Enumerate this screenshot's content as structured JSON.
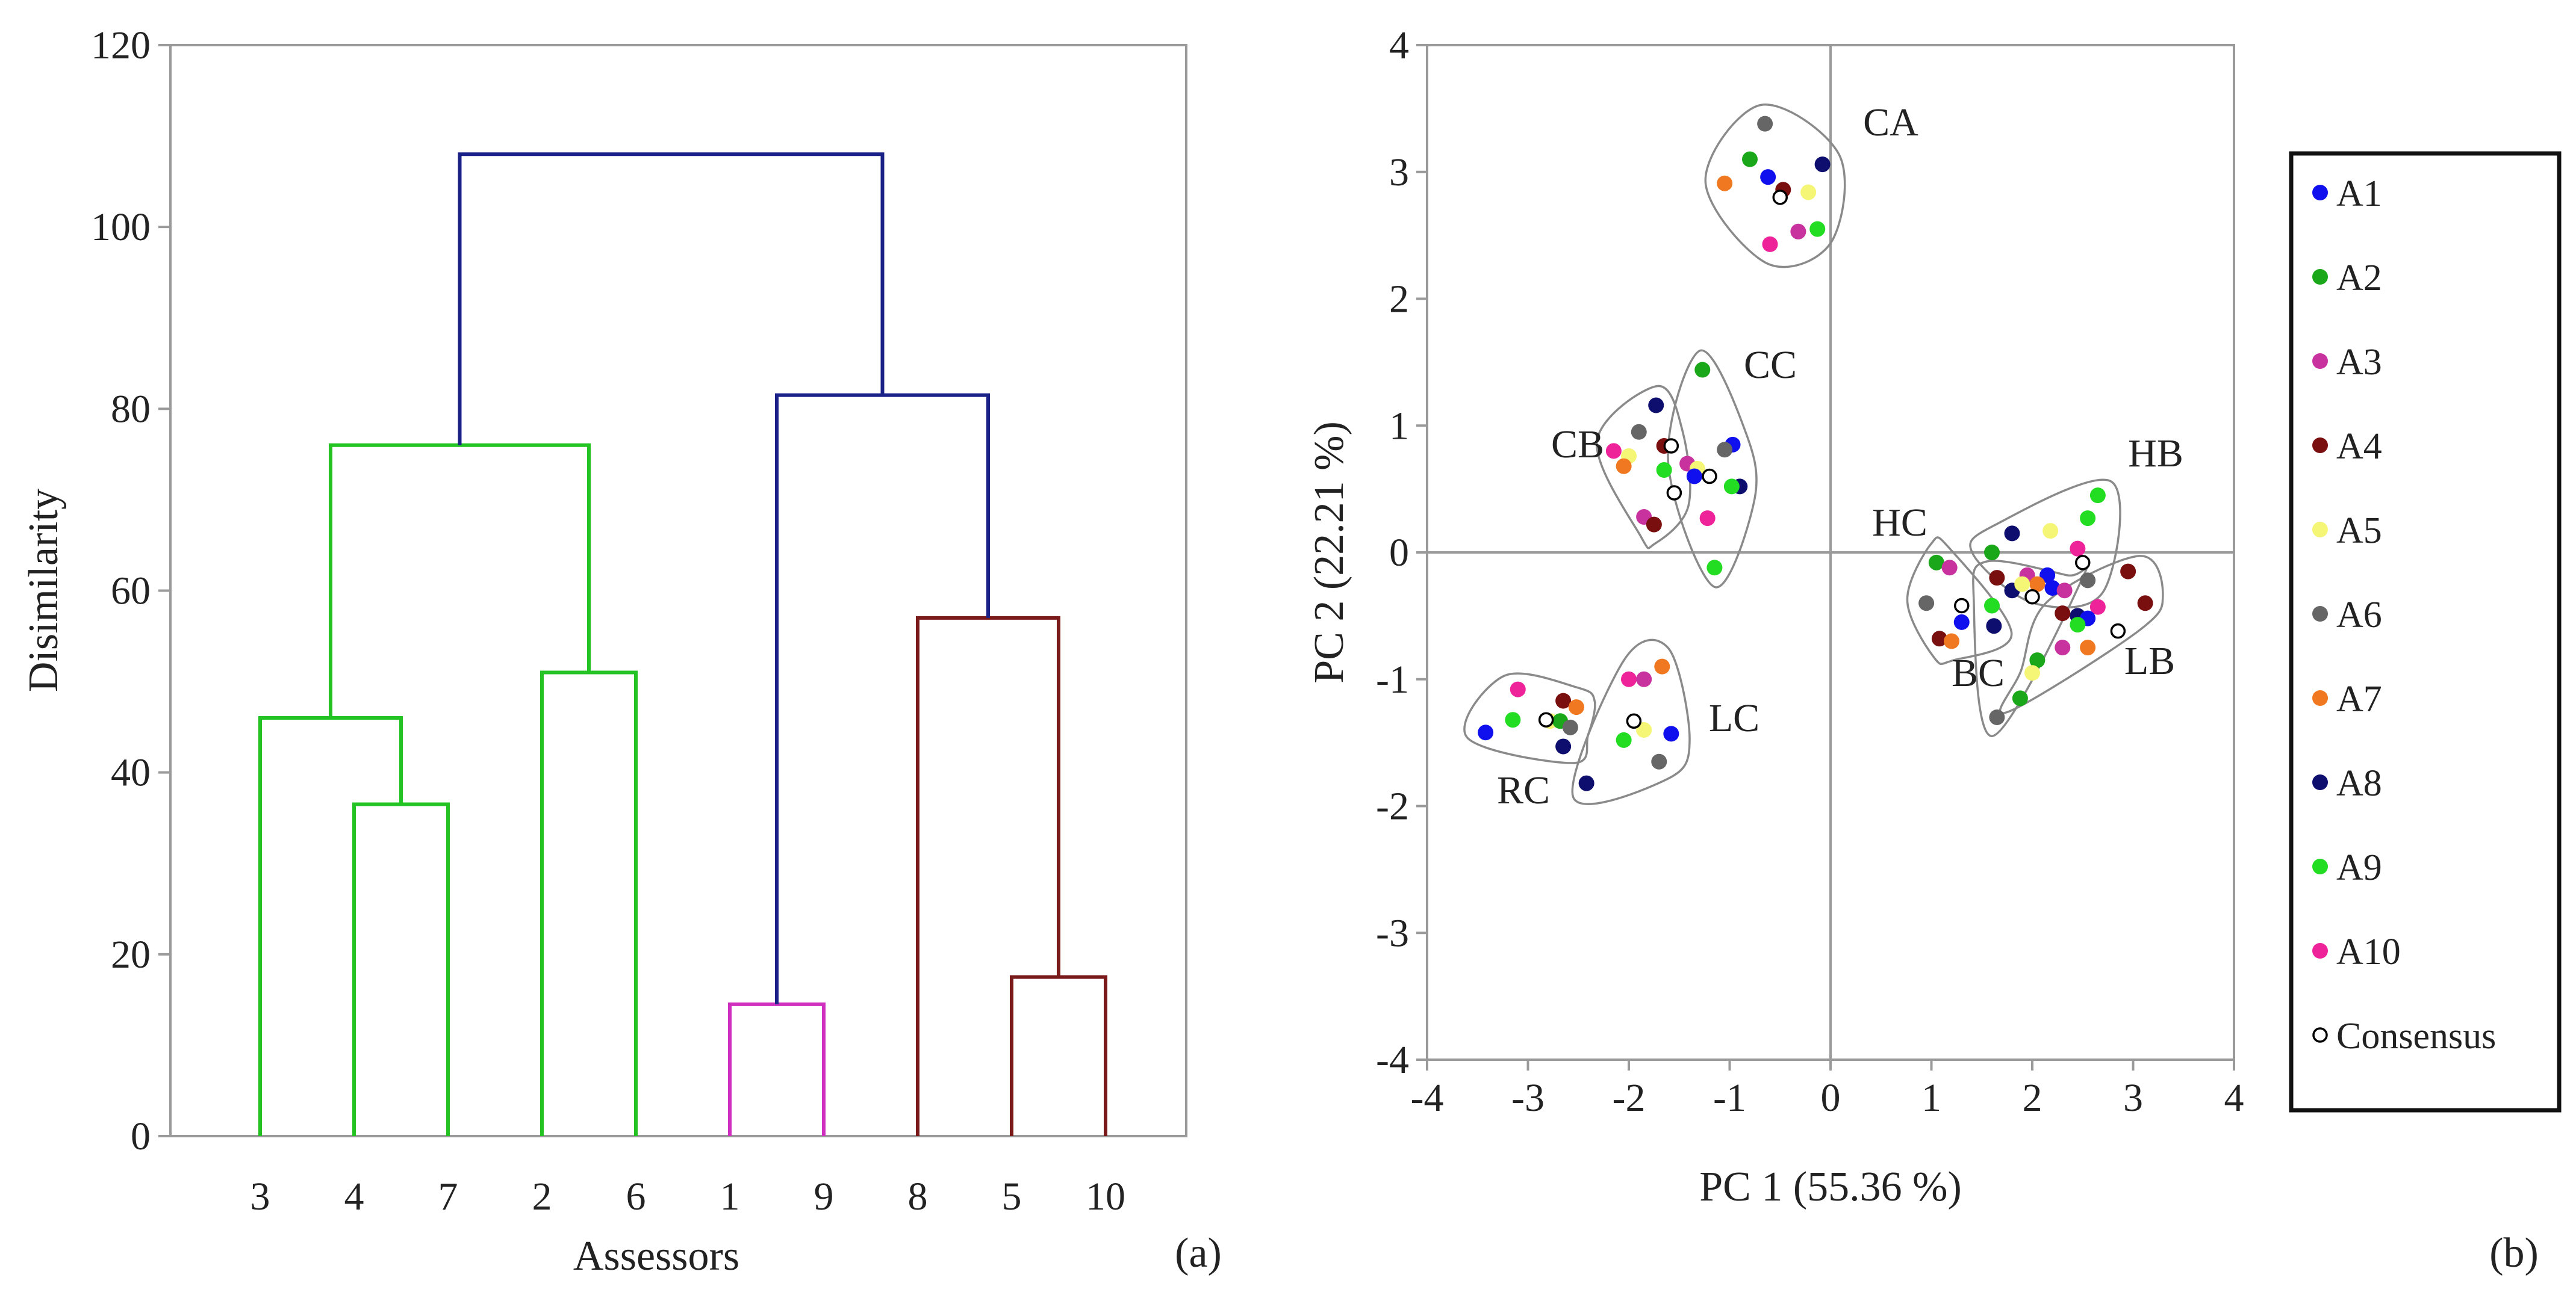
{
  "chart_data": [
    {
      "type": "dendrogram",
      "panel_label": "(a)",
      "title": "",
      "xlabel": "Assessors",
      "ylabel": "Disimilarity",
      "ylim": [
        0,
        120
      ],
      "yticks": [
        0,
        20,
        40,
        60,
        80,
        100,
        120
      ],
      "leaf_order": [
        "3",
        "4",
        "7",
        "2",
        "6",
        "1",
        "9",
        "8",
        "5",
        "10"
      ],
      "leaf_labels": [
        "3",
        "4",
        "7",
        "2",
        "6",
        "1",
        "9",
        "8",
        "5",
        "10"
      ],
      "colors": {
        "cluster_green": "#22c322",
        "cluster_magenta": "#d030c0",
        "cluster_darkred": "#7a1a1a",
        "root_blue": "#1a2288"
      },
      "merges": [
        {
          "id": "m47",
          "left": "4",
          "right": "7",
          "height": 36.5,
          "color": "cluster_green"
        },
        {
          "id": "m347",
          "left": "3",
          "right": "m47",
          "height": 46,
          "color": "cluster_green"
        },
        {
          "id": "m26",
          "left": "2",
          "right": "6",
          "height": 51,
          "color": "cluster_green"
        },
        {
          "id": "mG",
          "left": "m347",
          "right": "m26",
          "height": 76,
          "color": "cluster_green"
        },
        {
          "id": "m19",
          "left": "1",
          "right": "9",
          "height": 14.5,
          "color": "cluster_magenta"
        },
        {
          "id": "m510",
          "left": "5",
          "right": "10",
          "height": 17.5,
          "color": "cluster_darkred"
        },
        {
          "id": "m8510",
          "left": "8",
          "right": "m510",
          "height": 57,
          "color": "cluster_darkred"
        },
        {
          "id": "mB",
          "left": "m19",
          "right": "m8510",
          "height": 81.5,
          "color": "root_blue"
        },
        {
          "id": "root",
          "left": "mG",
          "right": "mB",
          "height": 108,
          "color": "root_blue"
        }
      ]
    },
    {
      "type": "scatter",
      "panel_label": "(b)",
      "title": "",
      "xlabel": "PC 1 (55.36 %)",
      "ylabel": "PC 2 (22.21 %)",
      "xlim": [
        -4,
        4
      ],
      "ylim": [
        -4,
        4
      ],
      "xticks": [
        -4,
        -3,
        -2,
        -1,
        0,
        1,
        2,
        3,
        4
      ],
      "yticks": [
        -4,
        -3,
        -2,
        -1,
        0,
        1,
        2,
        3,
        4
      ],
      "xtick_labels": [
        "-4",
        "-3",
        "-2",
        "-1",
        "0",
        "1",
        "2",
        "3",
        "4"
      ],
      "ytick_labels": [
        "-4",
        "-3",
        "-2",
        "-1",
        "0",
        "1",
        "2",
        "3",
        "4"
      ],
      "legend": {
        "position": "right",
        "entries": [
          {
            "label": "A1",
            "color": "#1010ee",
            "marker": "filled"
          },
          {
            "label": "A2",
            "color": "#1aa81a",
            "marker": "filled"
          },
          {
            "label": "A3",
            "color": "#c8329e",
            "marker": "filled"
          },
          {
            "label": "A4",
            "color": "#7a0f0f",
            "marker": "filled"
          },
          {
            "label": "A5",
            "color": "#f5f576",
            "marker": "filled"
          },
          {
            "label": "A6",
            "color": "#666666",
            "marker": "filled"
          },
          {
            "label": "A7",
            "color": "#f07820",
            "marker": "filled"
          },
          {
            "label": "A8",
            "color": "#0e0e6e",
            "marker": "filled"
          },
          {
            "label": "A9",
            "color": "#22dd22",
            "marker": "filled"
          },
          {
            "label": "A10",
            "color": "#ee2299",
            "marker": "filled"
          },
          {
            "label": "Consensus",
            "color": "#000000",
            "marker": "open"
          }
        ]
      },
      "groups": [
        {
          "label": "CA",
          "points": [
            {
              "s": "A6",
              "x": -0.65,
              "y": 3.38
            },
            {
              "s": "A2",
              "x": -0.8,
              "y": 3.1
            },
            {
              "s": "A8",
              "x": -0.08,
              "y": 3.06
            },
            {
              "s": "A1",
              "x": -0.62,
              "y": 2.96
            },
            {
              "s": "A7",
              "x": -1.05,
              "y": 2.91
            },
            {
              "s": "A4",
              "x": -0.47,
              "y": 2.86
            },
            {
              "s": "A5",
              "x": -0.22,
              "y": 2.84
            },
            {
              "s": "A3",
              "x": -0.32,
              "y": 2.53
            },
            {
              "s": "A9",
              "x": -0.13,
              "y": 2.55
            },
            {
              "s": "A10",
              "x": -0.6,
              "y": 2.43
            },
            {
              "s": "Consensus",
              "x": -0.5,
              "y": 2.8
            }
          ]
        },
        {
          "label": "CC",
          "points": [
            {
              "s": "A2",
              "x": -1.27,
              "y": 1.44
            },
            {
              "s": "A1",
              "x": -0.97,
              "y": 0.85
            },
            {
              "s": "A6",
              "x": -1.05,
              "y": 0.81
            },
            {
              "s": "A3",
              "x": -1.42,
              "y": 0.7
            },
            {
              "s": "A5",
              "x": -1.32,
              "y": 0.66
            },
            {
              "s": "A8",
              "x": -0.9,
              "y": 0.52
            },
            {
              "s": "A9",
              "x": -0.98,
              "y": 0.52
            },
            {
              "s": "A1",
              "x": -1.35,
              "y": 0.6
            },
            {
              "s": "A10",
              "x": -1.22,
              "y": 0.27
            },
            {
              "s": "A9",
              "x": -1.15,
              "y": -0.12
            },
            {
              "s": "Consensus",
              "x": -1.2,
              "y": 0.6
            }
          ]
        },
        {
          "label": "CB",
          "points": [
            {
              "s": "A8",
              "x": -1.73,
              "y": 1.16
            },
            {
              "s": "A6",
              "x": -1.9,
              "y": 0.95
            },
            {
              "s": "A4",
              "x": -1.65,
              "y": 0.84
            },
            {
              "s": "A10",
              "x": -2.15,
              "y": 0.8
            },
            {
              "s": "A5",
              "x": -2.0,
              "y": 0.76
            },
            {
              "s": "A7",
              "x": -2.05,
              "y": 0.68
            },
            {
              "s": "A9",
              "x": -1.65,
              "y": 0.65
            },
            {
              "s": "A3",
              "x": -1.85,
              "y": 0.28
            },
            {
              "s": "A4",
              "x": -1.75,
              "y": 0.22
            },
            {
              "s": "Consensus",
              "x": -1.58,
              "y": 0.84
            },
            {
              "s": "Consensus",
              "x": -1.55,
              "y": 0.47
            }
          ]
        },
        {
          "label": "RC",
          "points": [
            {
              "s": "A10",
              "x": -3.1,
              "y": -1.08
            },
            {
              "s": "A4",
              "x": -2.65,
              "y": -1.17
            },
            {
              "s": "A7",
              "x": -2.52,
              "y": -1.22
            },
            {
              "s": "A1",
              "x": -3.42,
              "y": -1.42
            },
            {
              "s": "A9",
              "x": -3.15,
              "y": -1.32
            },
            {
              "s": "A5",
              "x": -2.78,
              "y": -1.33
            },
            {
              "s": "A2",
              "x": -2.68,
              "y": -1.33
            },
            {
              "s": "A6",
              "x": -2.58,
              "y": -1.38
            },
            {
              "s": "A8",
              "x": -2.65,
              "y": -1.53
            },
            {
              "s": "Consensus",
              "x": -2.82,
              "y": -1.32
            }
          ]
        },
        {
          "label": "LC",
          "points": [
            {
              "s": "A7",
              "x": -1.67,
              "y": -0.9
            },
            {
              "s": "A10",
              "x": -2.0,
              "y": -1.0
            },
            {
              "s": "A3",
              "x": -1.85,
              "y": -1.0
            },
            {
              "s": "A5",
              "x": -1.85,
              "y": -1.4
            },
            {
              "s": "A1",
              "x": -1.58,
              "y": -1.43
            },
            {
              "s": "A9",
              "x": -2.05,
              "y": -1.48
            },
            {
              "s": "A6",
              "x": -1.7,
              "y": -1.65
            },
            {
              "s": "A8",
              "x": -2.42,
              "y": -1.82
            },
            {
              "s": "Consensus",
              "x": -1.95,
              "y": -1.33
            }
          ]
        },
        {
          "label": "HC",
          "points": [
            {
              "s": "A2",
              "x": 1.05,
              "y": -0.08
            },
            {
              "s": "A3",
              "x": 1.18,
              "y": -0.12
            },
            {
              "s": "A8",
              "x": 1.62,
              "y": -0.58
            },
            {
              "s": "A6",
              "x": 0.95,
              "y": -0.4
            },
            {
              "s": "A4",
              "x": 1.08,
              "y": -0.68
            },
            {
              "s": "A7",
              "x": 1.2,
              "y": -0.7
            },
            {
              "s": "A1",
              "x": 1.3,
              "y": -0.55
            },
            {
              "s": "Consensus",
              "x": 1.3,
              "y": -0.42
            }
          ]
        },
        {
          "label": "HB",
          "points": [
            {
              "s": "A9",
              "x": 2.65,
              "y": 0.45
            },
            {
              "s": "A9",
              "x": 2.55,
              "y": 0.27
            },
            {
              "s": "A5",
              "x": 2.18,
              "y": 0.17
            },
            {
              "s": "A8",
              "x": 1.8,
              "y": 0.15
            },
            {
              "s": "A10",
              "x": 2.45,
              "y": 0.03
            },
            {
              "s": "A2",
              "x": 1.6,
              "y": 0.0
            },
            {
              "s": "Consensus",
              "x": 2.5,
              "y": -0.08
            },
            {
              "s": "A3",
              "x": 1.95,
              "y": -0.18
            },
            {
              "s": "A1",
              "x": 2.15,
              "y": -0.18
            },
            {
              "s": "A6",
              "x": 2.55,
              "y": -0.22
            },
            {
              "s": "A7",
              "x": 2.05,
              "y": -0.25
            }
          ]
        },
        {
          "label": "BC",
          "points": [
            {
              "s": "A4",
              "x": 1.65,
              "y": -0.2
            },
            {
              "s": "A8",
              "x": 1.8,
              "y": -0.3
            },
            {
              "s": "A5",
              "x": 1.9,
              "y": -0.25
            },
            {
              "s": "A9",
              "x": 1.6,
              "y": -0.42
            },
            {
              "s": "A1",
              "x": 2.2,
              "y": -0.28
            },
            {
              "s": "A3",
              "x": 2.32,
              "y": -0.3
            },
            {
              "s": "A6",
              "x": 1.65,
              "y": -1.3
            },
            {
              "s": "Consensus",
              "x": 2.0,
              "y": -0.35
            }
          ]
        },
        {
          "label": "LB",
          "points": [
            {
              "s": "A4",
              "x": 2.95,
              "y": -0.15
            },
            {
              "s": "A4",
              "x": 3.12,
              "y": -0.4
            },
            {
              "s": "A10",
              "x": 2.65,
              "y": -0.43
            },
            {
              "s": "A8",
              "x": 2.45,
              "y": -0.5
            },
            {
              "s": "A1",
              "x": 2.55,
              "y": -0.52
            },
            {
              "s": "A4",
              "x": 2.3,
              "y": -0.48
            },
            {
              "s": "A9",
              "x": 2.45,
              "y": -0.57
            },
            {
              "s": "Consensus",
              "x": 2.85,
              "y": -0.62
            },
            {
              "s": "A7",
              "x": 2.55,
              "y": -0.75
            },
            {
              "s": "A3",
              "x": 2.3,
              "y": -0.75
            },
            {
              "s": "A2",
              "x": 2.05,
              "y": -0.85
            },
            {
              "s": "A5",
              "x": 2.0,
              "y": -0.95
            },
            {
              "s": "A2",
              "x": 1.88,
              "y": -1.15
            }
          ]
        }
      ]
    }
  ]
}
